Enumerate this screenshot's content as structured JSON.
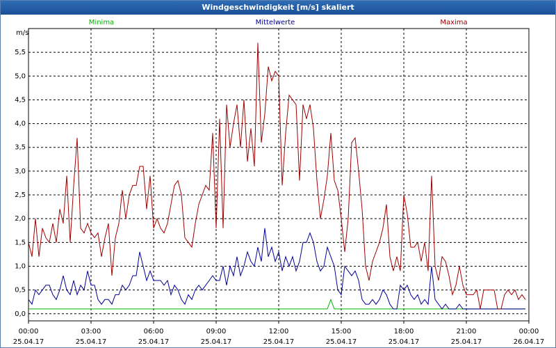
{
  "window_title": "Windgeschwindigkeit [m/s] skaliert",
  "chart_data": {
    "type": "line",
    "ylabel": "m/s",
    "legend": "top",
    "grid": true,
    "xlim": [
      0,
      1440
    ],
    "ylim": [
      -0.15,
      6.0
    ],
    "xticks": [
      {
        "value": 0,
        "label": "00:00"
      },
      {
        "value": 180,
        "label": "03:00"
      },
      {
        "value": 360,
        "label": "06:00"
      },
      {
        "value": 540,
        "label": "09:00"
      },
      {
        "value": 720,
        "label": "12:00"
      },
      {
        "value": 900,
        "label": "15:00"
      },
      {
        "value": 1080,
        "label": "18:00"
      },
      {
        "value": 1260,
        "label": "21:00"
      },
      {
        "value": 1440,
        "label": "00:00"
      }
    ],
    "xtick_dates": [
      "25.04.17",
      "25.04.17",
      "25.04.17",
      "25.04.17",
      "25.04.17",
      "25.04.17",
      "25.04.17",
      "25.04.17",
      "26.04.17"
    ],
    "yticks": [
      {
        "value": 0,
        "label": "0,0"
      },
      {
        "value": 0.5,
        "label": "0,5"
      },
      {
        "value": 1,
        "label": "1,0"
      },
      {
        "value": 1.5,
        "label": "1,5"
      },
      {
        "value": 2,
        "label": "2,0"
      },
      {
        "value": 2.5,
        "label": "2,5"
      },
      {
        "value": 3,
        "label": "3,0"
      },
      {
        "value": 3.5,
        "label": "3,5"
      },
      {
        "value": 4,
        "label": "4,0"
      },
      {
        "value": 4.5,
        "label": "4,5"
      },
      {
        "value": 5,
        "label": "5,0"
      },
      {
        "value": 5.5,
        "label": "5,5"
      }
    ],
    "x": [
      0,
      10,
      20,
      30,
      40,
      50,
      60,
      70,
      80,
      90,
      100,
      110,
      120,
      130,
      140,
      150,
      160,
      170,
      180,
      190,
      200,
      210,
      220,
      230,
      240,
      250,
      260,
      270,
      280,
      290,
      300,
      310,
      320,
      330,
      340,
      350,
      360,
      370,
      380,
      390,
      400,
      410,
      420,
      430,
      440,
      450,
      460,
      470,
      480,
      490,
      500,
      510,
      520,
      530,
      540,
      550,
      560,
      570,
      580,
      590,
      600,
      610,
      620,
      630,
      640,
      650,
      660,
      670,
      680,
      690,
      700,
      710,
      720,
      730,
      740,
      750,
      760,
      770,
      780,
      790,
      800,
      810,
      820,
      830,
      840,
      850,
      860,
      870,
      880,
      890,
      900,
      910,
      920,
      930,
      940,
      950,
      960,
      970,
      980,
      990,
      1000,
      1010,
      1020,
      1030,
      1040,
      1050,
      1060,
      1070,
      1080,
      1090,
      1100,
      1110,
      1120,
      1130,
      1140,
      1150,
      1160,
      1170,
      1180,
      1190,
      1200,
      1210,
      1220,
      1230,
      1240,
      1250,
      1260,
      1270,
      1280,
      1290,
      1300,
      1310,
      1320,
      1330,
      1340,
      1350,
      1360,
      1370,
      1380,
      1390,
      1400,
      1410,
      1420,
      1430
    ],
    "series": [
      {
        "name": "Minima",
        "color": "#00b400",
        "values": [
          0.1,
          0.1,
          0.1,
          0.1,
          0.1,
          0.1,
          0.1,
          0.1,
          0.1,
          0.1,
          0.1,
          0.1,
          0.1,
          0.1,
          0.1,
          0.1,
          0.1,
          0.1,
          0.1,
          0.1,
          0.1,
          0.1,
          0.1,
          0.1,
          0.1,
          0.1,
          0.1,
          0.1,
          0.1,
          0.1,
          0.1,
          0.1,
          0.1,
          0.1,
          0.1,
          0.1,
          0.1,
          0.1,
          0.1,
          0.1,
          0.1,
          0.1,
          0.1,
          0.1,
          0.1,
          0.1,
          0.1,
          0.1,
          0.1,
          0.1,
          0.1,
          0.1,
          0.1,
          0.1,
          0.1,
          0.1,
          0.1,
          0.1,
          0.1,
          0.1,
          0.1,
          0.1,
          0.1,
          0.1,
          0.1,
          0.1,
          0.1,
          0.1,
          0.1,
          0.1,
          0.1,
          0.1,
          0.1,
          0.1,
          0.1,
          0.1,
          0.1,
          0.1,
          0.1,
          0.1,
          0.1,
          0.1,
          0.1,
          0.1,
          0.1,
          0.1,
          0.1,
          0.3,
          0.1,
          0.1,
          0.1,
          0.1,
          0.1,
          0.1,
          0.1,
          0.1,
          0.1,
          0.1,
          0.1,
          0.1,
          0.1,
          0.1,
          0.1,
          0.1,
          0.1,
          0.1,
          0.1,
          0.1,
          0.1,
          0.1,
          0.1,
          0.1,
          0.1,
          0.1,
          0.1,
          0.1,
          0.1,
          0.1,
          0.1,
          0.1,
          0.1,
          0.1,
          0.1,
          0.1,
          0.1,
          0.1,
          0.1,
          0.1,
          0.1,
          0.1,
          0.1,
          0.1,
          0.1,
          0.1,
          0.1,
          0.1,
          0.1,
          0.1,
          0.1,
          0.1,
          0.1,
          0.1,
          0.1,
          0.1
        ]
      },
      {
        "name": "Mittelwerte",
        "color": "#000096",
        "values": [
          0.3,
          0.2,
          0.5,
          0.4,
          0.5,
          0.6,
          0.6,
          0.4,
          0.3,
          0.5,
          0.8,
          0.5,
          0.4,
          0.7,
          0.4,
          0.6,
          0.5,
          0.9,
          0.6,
          0.6,
          0.3,
          0.2,
          0.3,
          0.3,
          0.2,
          0.4,
          0.4,
          0.6,
          0.5,
          0.6,
          0.8,
          0.8,
          1.3,
          1.0,
          0.7,
          0.9,
          0.7,
          0.7,
          0.7,
          0.6,
          0.7,
          0.4,
          0.6,
          0.5,
          0.3,
          0.2,
          0.4,
          0.3,
          0.5,
          0.6,
          0.5,
          0.6,
          0.7,
          0.8,
          0.7,
          0.7,
          1.0,
          0.6,
          1.0,
          0.8,
          1.2,
          0.8,
          1.0,
          1.3,
          1.1,
          1.0,
          1.4,
          1.1,
          1.8,
          1.2,
          1.4,
          1.1,
          1.3,
          0.9,
          1.2,
          1.0,
          1.2,
          0.9,
          1.1,
          1.5,
          1.5,
          1.7,
          1.5,
          1.1,
          0.9,
          1.0,
          1.4,
          1.2,
          1.0,
          0.5,
          0.4,
          1.0,
          0.9,
          0.8,
          0.9,
          0.7,
          0.3,
          0.2,
          0.2,
          0.3,
          0.2,
          0.3,
          0.5,
          0.4,
          0.2,
          0.1,
          0.1,
          0.6,
          0.5,
          0.6,
          0.4,
          0.3,
          0.4,
          0.2,
          0.3,
          0.2,
          1.0,
          0.3,
          0.2,
          0.1,
          0.2,
          0.1,
          0.1,
          0.1,
          0.2,
          0.1,
          0.1,
          0.1,
          0.1,
          0.1,
          0.1,
          0.1,
          0.1,
          0.1,
          0.1,
          0.1,
          0.1,
          0.1,
          0.1,
          0.1,
          0.1,
          0.1,
          0.1,
          0.1
        ]
      },
      {
        "name": "Maxima",
        "color": "#a00000",
        "values": [
          1.5,
          1.2,
          2.0,
          1.2,
          1.8,
          1.6,
          1.5,
          1.9,
          1.5,
          2.2,
          1.9,
          2.9,
          1.5,
          2.7,
          3.7,
          1.8,
          1.7,
          1.9,
          1.7,
          1.6,
          1.7,
          1.2,
          1.6,
          1.9,
          0.8,
          1.6,
          1.9,
          2.6,
          2.0,
          2.5,
          2.7,
          2.7,
          3.1,
          3.1,
          2.2,
          2.9,
          1.8,
          2.0,
          1.8,
          1.7,
          1.9,
          2.3,
          2.7,
          2.8,
          2.5,
          1.6,
          1.5,
          1.4,
          1.9,
          2.3,
          2.5,
          2.7,
          2.6,
          3.8,
          1.8,
          4.1,
          1.8,
          4.4,
          3.5,
          4.0,
          4.4,
          3.5,
          4.5,
          3.2,
          3.9,
          3.1,
          5.7,
          3.6,
          4.2,
          5.2,
          4.9,
          5.1,
          5.0,
          2.7,
          3.8,
          4.6,
          4.5,
          4.4,
          2.8,
          4.4,
          4.1,
          4.4,
          3.9,
          2.8,
          2.0,
          2.4,
          2.9,
          3.8,
          2.8,
          2.6,
          2.0,
          1.3,
          2.0,
          3.6,
          3.7,
          3.0,
          2.2,
          1.0,
          0.7,
          1.1,
          1.3,
          1.5,
          1.8,
          2.3,
          1.2,
          0.9,
          1.2,
          0.9,
          2.5,
          2.1,
          1.4,
          1.4,
          1.5,
          1.1,
          1.5,
          0.9,
          2.9,
          1.0,
          0.7,
          1.2,
          1.1,
          0.8,
          0.4,
          0.6,
          1.0,
          0.6,
          0.4,
          0.4,
          0.4,
          0.5,
          0.1,
          0.5,
          0.5,
          0.5,
          0.5,
          0.1,
          0.1,
          0.4,
          0.5,
          0.4,
          0.5,
          0.3,
          0.4,
          0.3
        ]
      }
    ]
  }
}
